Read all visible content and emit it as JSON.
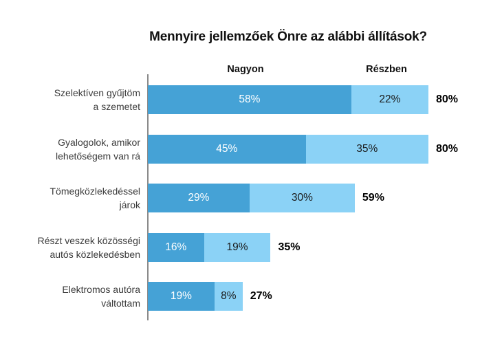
{
  "title": "Mennyire jellemzőek Önre az alábbi állítások?",
  "colors": {
    "nagyon_bar": "#45A2D6",
    "reszben_bar": "#8BD2F6",
    "axis": "#8a8a8a",
    "label_on_dark": "#ffffff",
    "label_on_light": "#1a1a1a",
    "total_label": "#000000"
  },
  "chart_data": {
    "type": "bar",
    "orientation": "horizontal",
    "stacked": true,
    "title": "Mennyire jellemzőek Önre az alábbi állítások?",
    "unit": "%",
    "xlim": [
      0,
      100
    ],
    "grid": false,
    "legend_position": "column-headers-above-bars",
    "series_names": [
      "Nagyon",
      "Részben"
    ],
    "categories": [
      "Szelektíven gyűjtöm a szemetet",
      "Gyalogolok, amikor lehetőségem van rá",
      "Tömegközlekedéssel járok",
      "Részt veszek közösségi autós közlekedésben",
      "Elektromos autóra váltottam"
    ],
    "category_lines": [
      [
        "Szelektíven gyűjtöm",
        "a szemetet"
      ],
      [
        "Gyalogolok, amikor",
        "lehetőségem van rá"
      ],
      [
        "Tömegközlekedéssel",
        "járok"
      ],
      [
        "Részt veszek közösségi",
        "autós közlekedésben"
      ],
      [
        "Elektromos autóra",
        "váltottam"
      ]
    ],
    "series": [
      {
        "name": "Nagyon",
        "values": [
          58,
          45,
          29,
          16,
          19
        ]
      },
      {
        "name": "Részben",
        "values": [
          22,
          35,
          30,
          19,
          8
        ]
      }
    ],
    "totals": [
      80,
      80,
      59,
      35,
      27
    ],
    "value_labels": "inside-segments"
  }
}
